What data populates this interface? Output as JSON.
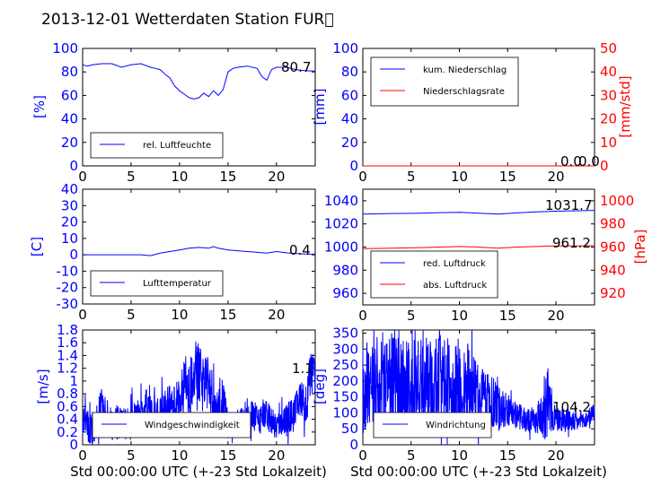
{
  "title": "2013-12-01 Wetterdaten Station FUR\u0000",
  "xlabel": "Std 00:00:00 UTC (+-23 Std Lokalzeit)",
  "colors": {
    "blue": "#0000ff",
    "red": "#ff0000"
  },
  "chart_data": [
    {
      "type": "line",
      "panel": "humidity",
      "ylabel": "[%]",
      "xlim": [
        0,
        24
      ],
      "ylim": [
        0,
        100
      ],
      "xticks": [
        0,
        5,
        10,
        15,
        20
      ],
      "yticks": [
        0,
        20,
        40,
        60,
        80,
        100
      ],
      "legend": "bottom-left",
      "annotation": "80.7",
      "series": [
        {
          "name": "rel. Luftfeuchte",
          "color": "#0000ff",
          "x": [
            0,
            0.5,
            1,
            2,
            3,
            4,
            5,
            6,
            7,
            7.5,
            8,
            8.5,
            9,
            9.5,
            10,
            10.5,
            11,
            11.5,
            12,
            12.5,
            13,
            13.5,
            14,
            14.5,
            15,
            15.5,
            16,
            17,
            18,
            18.5,
            19,
            19.5,
            20,
            21,
            22,
            23,
            24
          ],
          "y": [
            86,
            85,
            86,
            87,
            87,
            84,
            86,
            87,
            84,
            83,
            82,
            78,
            75,
            68,
            64,
            61,
            58,
            57,
            58,
            62,
            59,
            64,
            60,
            65,
            80,
            83,
            84,
            85,
            83,
            76,
            73,
            82,
            84,
            84,
            82,
            81,
            80.7
          ]
        }
      ]
    },
    {
      "type": "line",
      "panel": "precipitation",
      "ylabel": "[mm]",
      "y2label": "[mm/std]",
      "xlim": [
        0,
        24
      ],
      "ylim": [
        0,
        100
      ],
      "y2lim": [
        0,
        50
      ],
      "xticks": [
        0,
        5,
        10,
        15,
        20
      ],
      "yticks": [
        0,
        20,
        40,
        60,
        80,
        100
      ],
      "y2ticks": [
        0,
        10,
        20,
        30,
        40,
        50
      ],
      "legend": "top-left",
      "annotation": "0.0",
      "annotation2": "0.0",
      "series": [
        {
          "name": "kum. Niederschlag",
          "color": "#0000ff",
          "axis": "left",
          "x": [
            0,
            24
          ],
          "y": [
            0,
            0
          ]
        },
        {
          "name": "Niederschlagsrate",
          "color": "#ff0000",
          "axis": "right",
          "x": [
            0,
            24
          ],
          "y": [
            0,
            0
          ]
        }
      ]
    },
    {
      "type": "line",
      "panel": "temperature",
      "ylabel": "[C]",
      "xlim": [
        0,
        24
      ],
      "ylim": [
        -30,
        40
      ],
      "xticks": [
        0,
        5,
        10,
        15,
        20
      ],
      "yticks": [
        -30,
        -20,
        -10,
        0,
        10,
        20,
        30,
        40
      ],
      "legend": "bottom-left",
      "annotation": "0.4",
      "series": [
        {
          "name": "Lufttemperatur",
          "color": "#0000ff",
          "x": [
            0,
            2,
            4,
            6,
            7,
            8,
            9,
            10,
            11,
            12,
            13,
            13.5,
            14,
            15,
            16,
            17,
            18,
            19,
            20,
            21,
            22,
            23,
            24
          ],
          "y": [
            0,
            0,
            0,
            0,
            -0.5,
            1,
            2,
            3,
            4,
            4.5,
            4,
            5,
            4,
            3,
            2.5,
            2,
            1.5,
            1,
            2,
            1.2,
            0.8,
            0.5,
            0.4
          ]
        }
      ]
    },
    {
      "type": "line",
      "panel": "pressure",
      "y2label": "[hPa]",
      "xlim": [
        0,
        24
      ],
      "ylim": [
        950,
        1050
      ],
      "y2lim": [
        910,
        1010
      ],
      "xticks": [
        0,
        5,
        10,
        15,
        20
      ],
      "yticks": [
        960,
        980,
        1000,
        1020,
        1040
      ],
      "y2ticks": [
        920,
        940,
        960,
        980,
        1000
      ],
      "legend": "bottom-left",
      "annotation": "1031.7",
      "annotation2": "961.2",
      "series": [
        {
          "name": "red. Luftdruck",
          "color": "#0000ff",
          "axis": "left",
          "x": [
            0,
            3,
            6,
            8,
            10,
            12,
            14,
            16,
            18,
            20,
            22,
            24
          ],
          "y": [
            1028.5,
            1029,
            1029.3,
            1029.8,
            1030,
            1029.3,
            1028.5,
            1029.5,
            1030.5,
            1031,
            1031.3,
            1031.7
          ]
        },
        {
          "name": "abs. Luftdruck",
          "color": "#ff0000",
          "axis": "right",
          "x": [
            0,
            3,
            6,
            8,
            10,
            12,
            14,
            16,
            18,
            20,
            22,
            24
          ],
          "y": [
            958.5,
            959,
            959.5,
            960,
            960.5,
            960,
            959,
            960,
            960.5,
            961,
            961,
            961.2
          ]
        }
      ]
    },
    {
      "type": "line",
      "panel": "windspeed",
      "ylabel": "[m/s]",
      "xlim": [
        0,
        24
      ],
      "ylim": [
        0,
        1.8
      ],
      "xticks": [
        0,
        5,
        10,
        15,
        20
      ],
      "yticks": [
        0,
        0.2,
        0.4,
        0.6,
        0.8,
        1.0,
        1.2,
        1.4,
        1.6,
        1.8
      ],
      "legend": "bottom-center",
      "annotation": "1.1",
      "series": [
        {
          "name": "Windgeschwindigkeit",
          "color": "#0000ff",
          "profile": "noisy",
          "x": [
            0,
            1,
            2,
            3,
            4,
            5,
            6,
            7,
            8,
            9,
            10,
            10.5,
            11,
            11.5,
            12,
            12.5,
            13,
            13.5,
            14,
            14.5,
            15,
            16,
            17,
            18,
            19,
            20,
            21,
            22,
            22.5,
            23,
            23.5,
            24
          ],
          "y": [
            0.4,
            0.2,
            0.6,
            0.3,
            0.4,
            0.35,
            0.5,
            0.6,
            0.4,
            0.6,
            0.7,
            0.9,
            0.8,
            1.2,
            1.1,
            0.9,
            1.0,
            0.7,
            0.6,
            0.7,
            0.3,
            0.3,
            0.5,
            0.4,
            0.45,
            0.3,
            0.4,
            0.5,
            0.8,
            0.6,
            1.1,
            1.1
          ],
          "amp": [
            0.25,
            0.25,
            0.3,
            0.25,
            0.3,
            0.3,
            0.3,
            0.35,
            0.35,
            0.35,
            0.35,
            0.4,
            0.45,
            0.45,
            0.5,
            0.45,
            0.4,
            0.4,
            0.35,
            0.35,
            0.2,
            0.2,
            0.25,
            0.25,
            0.25,
            0.2,
            0.25,
            0.3,
            0.3,
            0.3,
            0.35,
            0.3
          ]
        }
      ]
    },
    {
      "type": "line",
      "panel": "winddirection",
      "ylabel": "[deg]",
      "xlim": [
        0,
        24
      ],
      "ylim": [
        0,
        360
      ],
      "xticks": [
        0,
        5,
        10,
        15,
        20
      ],
      "yticks": [
        0,
        50,
        100,
        150,
        200,
        250,
        300,
        350
      ],
      "legend": "bottom-center",
      "annotation": "104.2",
      "series": [
        {
          "name": "Windrichtung",
          "color": "#0000ff",
          "profile": "noisy",
          "x": [
            0,
            1,
            2,
            3,
            4,
            5,
            6,
            7,
            8,
            9,
            10,
            11,
            12,
            13,
            14,
            15,
            16,
            17,
            18,
            19,
            20,
            21,
            22,
            23,
            24
          ],
          "y": [
            180,
            190,
            180,
            200,
            190,
            180,
            190,
            200,
            210,
            190,
            180,
            190,
            150,
            130,
            120,
            110,
            90,
            80,
            75,
            130,
            80,
            80,
            70,
            75,
            104.2
          ],
          "amp": [
            150,
            150,
            150,
            150,
            150,
            150,
            150,
            140,
            140,
            140,
            140,
            130,
            110,
            90,
            80,
            50,
            40,
            40,
            40,
            120,
            40,
            40,
            30,
            30,
            30
          ]
        }
      ]
    }
  ]
}
